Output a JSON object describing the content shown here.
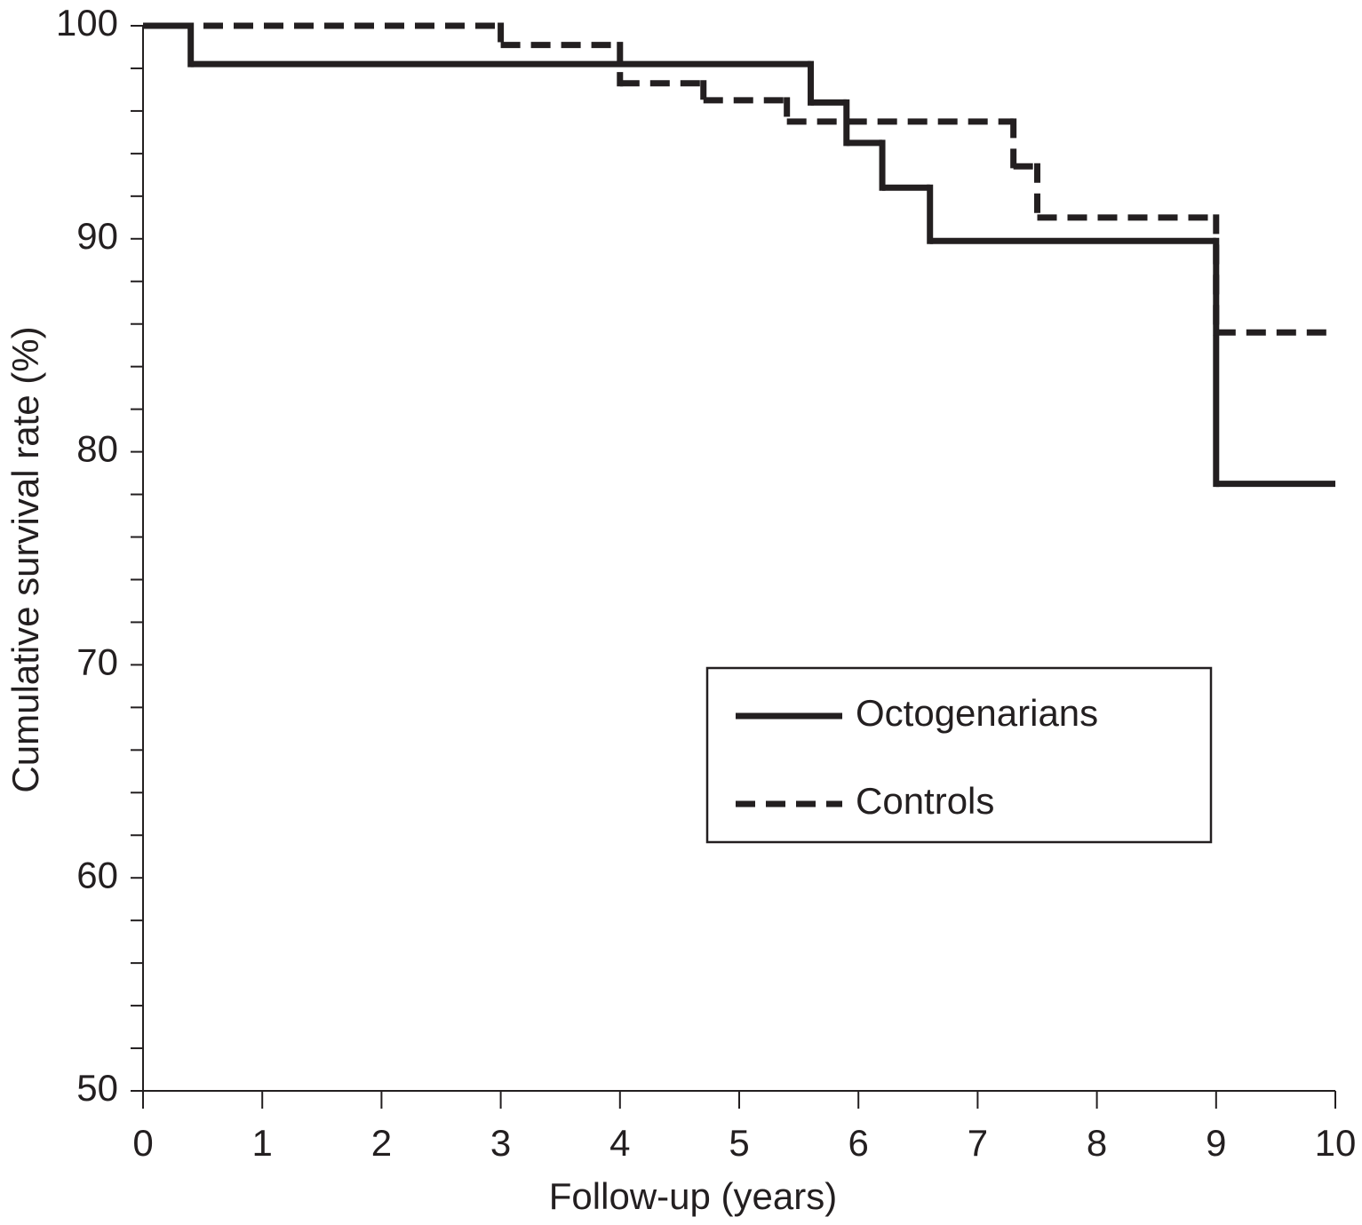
{
  "chart_data": {
    "type": "step",
    "xlabel": "Follow-up (years)",
    "ylabel": "Cumulative survival rate (%)",
    "xlim": [
      0,
      10
    ],
    "xticks": [
      0,
      1,
      2,
      3,
      4,
      5,
      6,
      7,
      8,
      9,
      10
    ],
    "ylim": [
      50,
      100
    ],
    "yticks": [
      50,
      60,
      70,
      80,
      90,
      100
    ],
    "yminor_ticks": [
      52,
      54,
      56,
      58,
      62,
      64,
      66,
      68,
      72,
      74,
      76,
      78,
      82,
      84,
      86,
      88,
      92,
      94,
      96,
      98
    ],
    "legend": "lower-right",
    "series": [
      {
        "name": "Octogenarians",
        "color": "#231f20",
        "dash": false,
        "x": [
          0,
          0.4,
          5.6,
          5.9,
          6.2,
          6.6,
          9.0,
          10
        ],
        "values": [
          100,
          98.2,
          96.4,
          94.5,
          92.4,
          89.9,
          78.5,
          78.5
        ]
      },
      {
        "name": "Controls",
        "color": "#231f20",
        "dash": true,
        "x": [
          0,
          3.0,
          4.0,
          4.7,
          5.4,
          7.3,
          7.5,
          9.0,
          10
        ],
        "values": [
          100,
          99.1,
          97.3,
          96.5,
          95.5,
          93.4,
          91.0,
          85.6,
          85.6
        ]
      }
    ]
  }
}
